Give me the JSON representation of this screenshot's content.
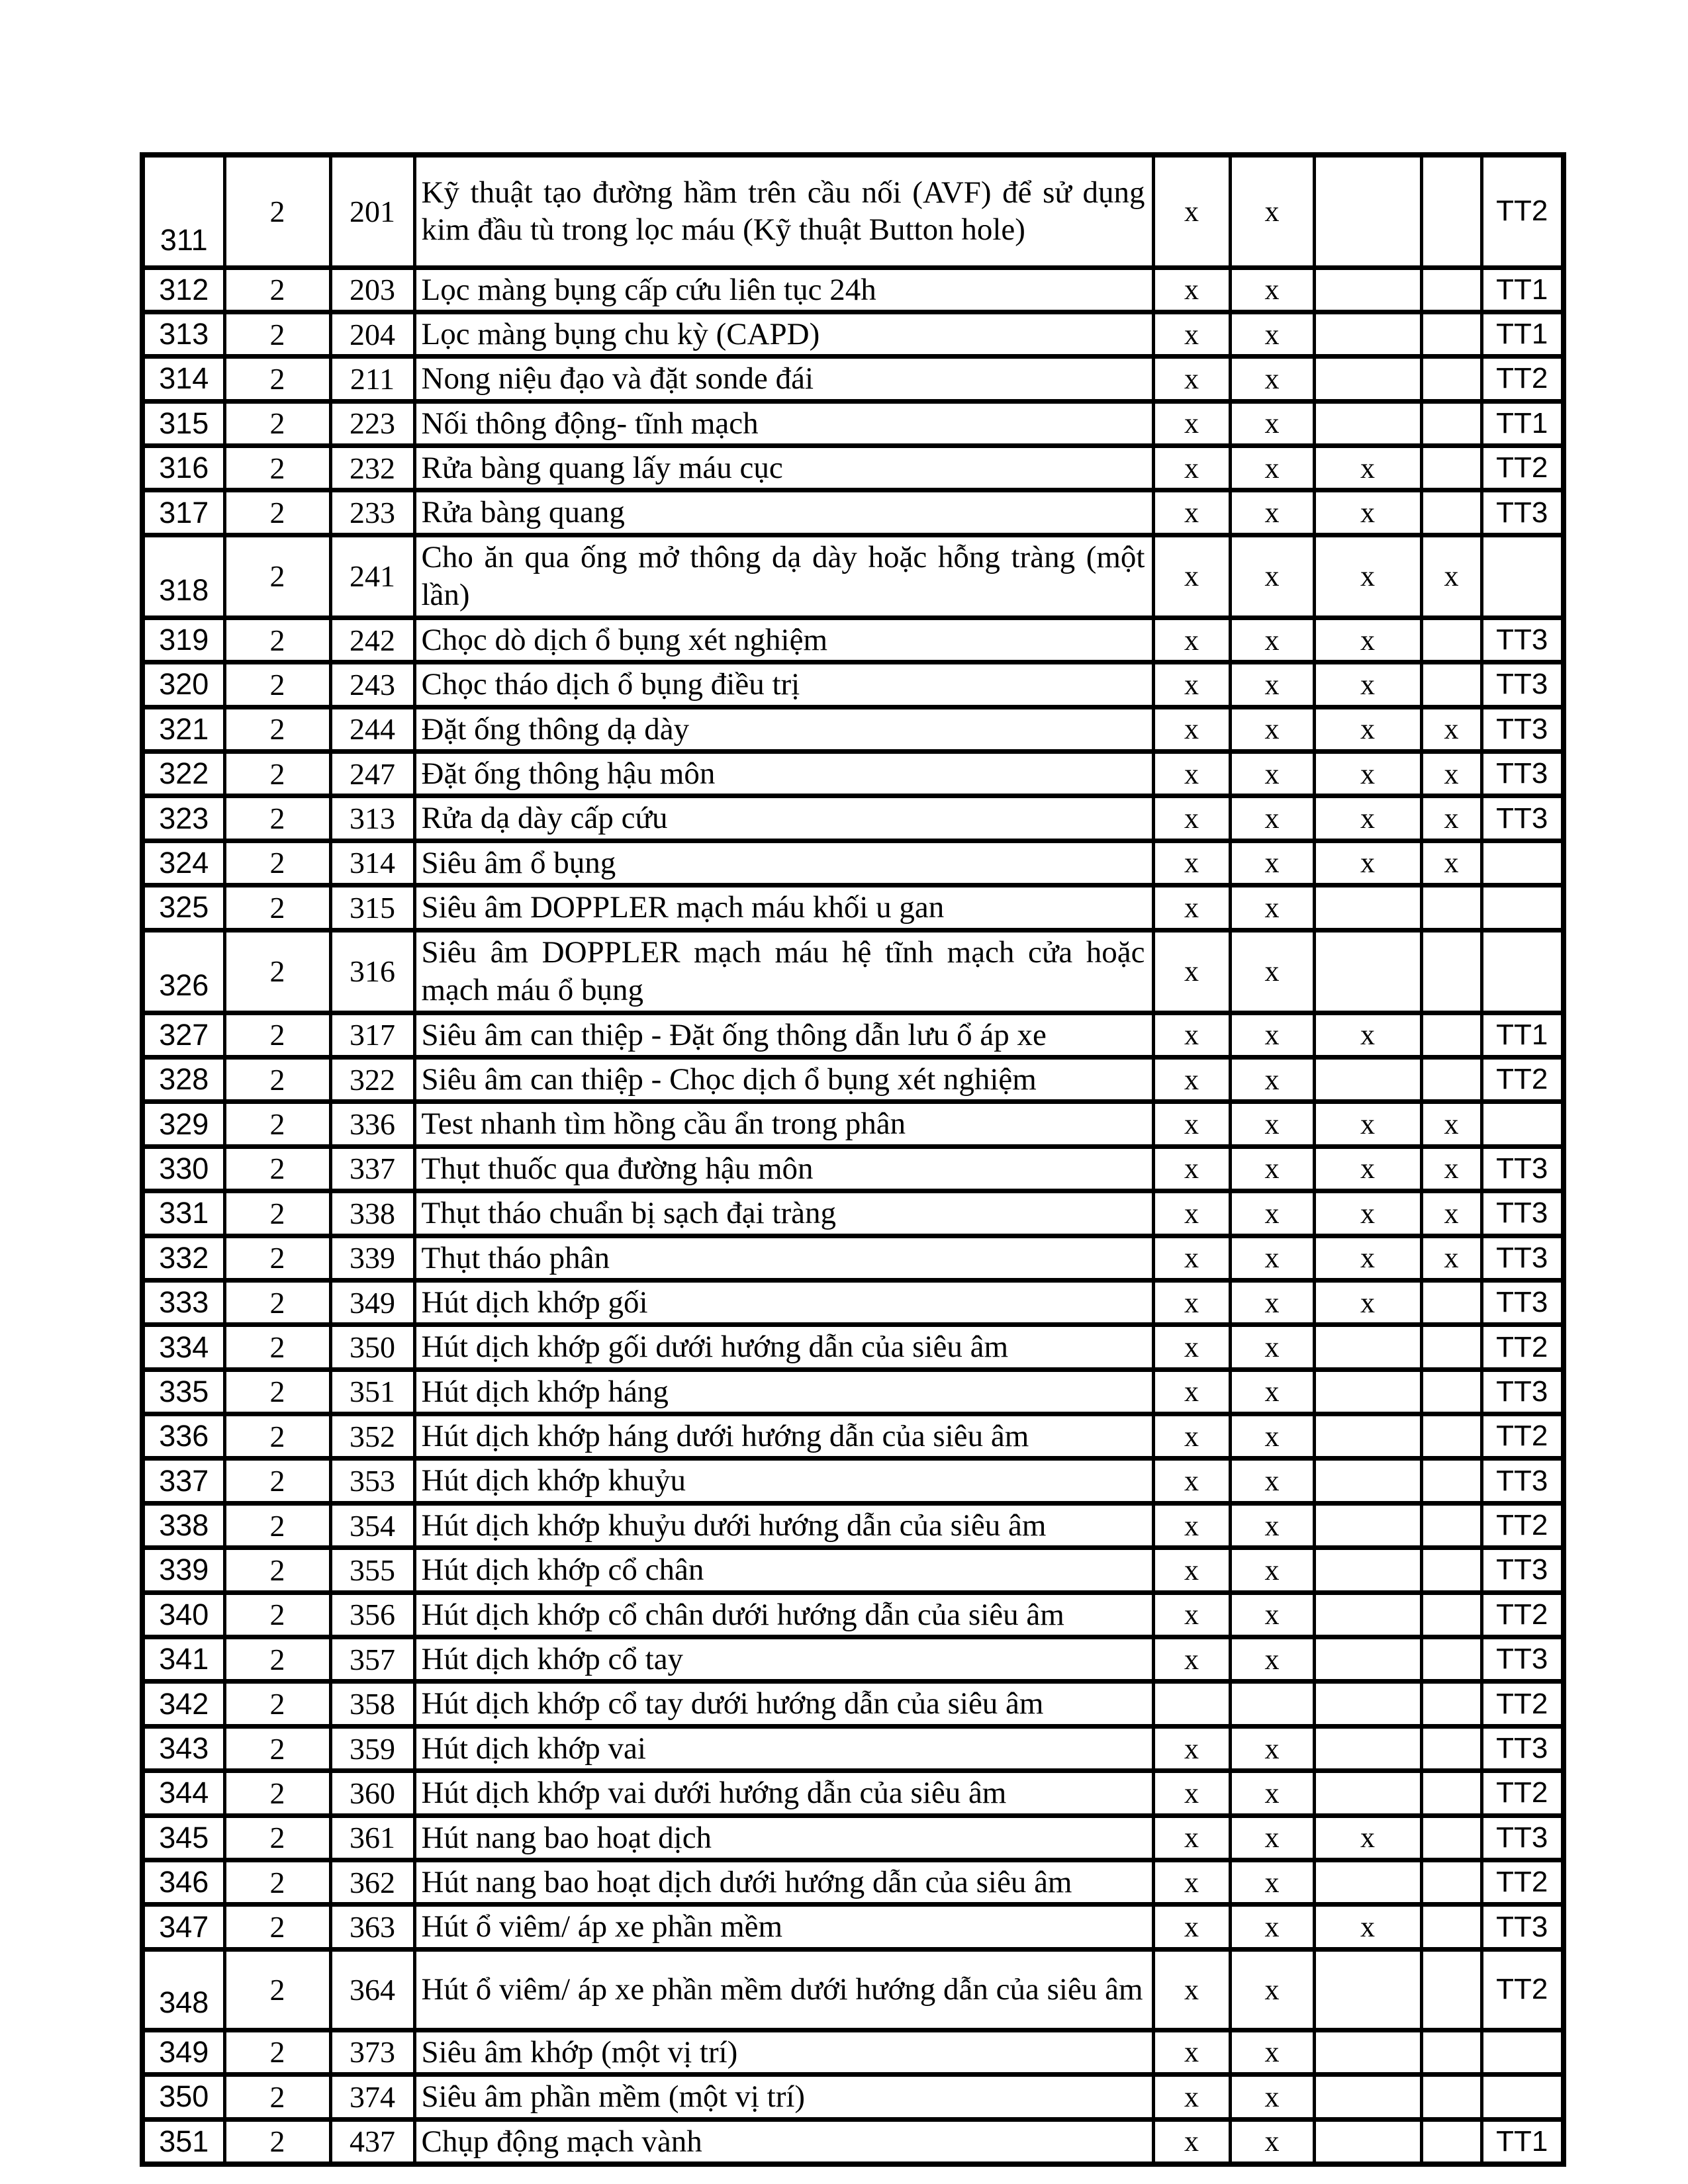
{
  "table": {
    "mark_symbol": "x",
    "rows": [
      {
        "stt": "311",
        "level": "2",
        "code": "201",
        "name": "Kỹ thuật tạo đường hầm trên cầu nối (AVF) để sử dụng kim đầu tù trong lọc máu (Kỹ thuật Button hole)",
        "marks": [
          "x",
          "x",
          "",
          ""
        ],
        "tt": "TT2"
      },
      {
        "stt": "312",
        "level": "2",
        "code": "203",
        "name": "Lọc màng bụng cấp cứu liên tục 24h",
        "marks": [
          "x",
          "x",
          "",
          ""
        ],
        "tt": "TT1"
      },
      {
        "stt": "313",
        "level": "2",
        "code": "204",
        "name": "Lọc màng bụng chu kỳ (CAPD)",
        "marks": [
          "x",
          "x",
          "",
          ""
        ],
        "tt": "TT1"
      },
      {
        "stt": "314",
        "level": "2",
        "code": "211",
        "name": "Nong niệu đạo và đặt sonde đái",
        "marks": [
          "x",
          "x",
          "",
          ""
        ],
        "tt": "TT2"
      },
      {
        "stt": "315",
        "level": "2",
        "code": "223",
        "name": "Nối thông động- tĩnh mạch",
        "marks": [
          "x",
          "x",
          "",
          ""
        ],
        "tt": "TT1"
      },
      {
        "stt": "316",
        "level": "2",
        "code": "232",
        "name": "Rửa bàng quang lấy máu cục",
        "marks": [
          "x",
          "x",
          "x",
          ""
        ],
        "tt": "TT2"
      },
      {
        "stt": "317",
        "level": "2",
        "code": "233",
        "name": "Rửa bàng quang",
        "marks": [
          "x",
          "x",
          "x",
          ""
        ],
        "tt": "TT3"
      },
      {
        "stt": "318",
        "level": "2",
        "code": "241",
        "name": "Cho ăn qua ống mở thông dạ dày hoặc hỗng tràng (một lần)",
        "marks": [
          "x",
          "x",
          "x",
          "x"
        ],
        "tt": ""
      },
      {
        "stt": "319",
        "level": "2",
        "code": "242",
        "name": "Chọc dò dịch ổ bụng xét nghiệm",
        "marks": [
          "x",
          "x",
          "x",
          ""
        ],
        "tt": "TT3"
      },
      {
        "stt": "320",
        "level": "2",
        "code": "243",
        "name": "Chọc tháo dịch ổ bụng điều trị",
        "marks": [
          "x",
          "x",
          "x",
          ""
        ],
        "tt": "TT3"
      },
      {
        "stt": "321",
        "level": "2",
        "code": "244",
        "name": "Đặt ống thông dạ dày",
        "marks": [
          "x",
          "x",
          "x",
          "x"
        ],
        "tt": "TT3"
      },
      {
        "stt": "322",
        "level": "2",
        "code": "247",
        "name": "Đặt ống thông hậu môn",
        "marks": [
          "x",
          "x",
          "x",
          "x"
        ],
        "tt": "TT3"
      },
      {
        "stt": "323",
        "level": "2",
        "code": "313",
        "name": "Rửa dạ dày cấp cứu",
        "marks": [
          "x",
          "x",
          "x",
          "x"
        ],
        "tt": "TT3"
      },
      {
        "stt": "324",
        "level": "2",
        "code": "314",
        "name": "Siêu âm ổ bụng",
        "marks": [
          "x",
          "x",
          "x",
          "x"
        ],
        "tt": ""
      },
      {
        "stt": "325",
        "level": "2",
        "code": "315",
        "name": "Siêu âm DOPPLER mạch máu khối u gan",
        "marks": [
          "x",
          "x",
          "",
          ""
        ],
        "tt": ""
      },
      {
        "stt": "326",
        "level": "2",
        "code": "316",
        "name": "Siêu âm DOPPLER mạch máu hệ tĩnh mạch cửa hoặc mạch máu ổ bụng",
        "marks": [
          "x",
          "x",
          "",
          ""
        ],
        "tt": ""
      },
      {
        "stt": "327",
        "level": "2",
        "code": "317",
        "name": "Siêu âm can thiệp - Đặt ống thông dẫn lưu ổ áp xe",
        "marks": [
          "x",
          "x",
          "x",
          ""
        ],
        "tt": "TT1"
      },
      {
        "stt": "328",
        "level": "2",
        "code": "322",
        "name": "Siêu âm can thiệp - Chọc dịch ổ bụng xét nghiệm",
        "marks": [
          "x",
          "x",
          "",
          ""
        ],
        "tt": "TT2"
      },
      {
        "stt": "329",
        "level": "2",
        "code": "336",
        "name": "Test nhanh tìm hồng cầu ẩn trong phân",
        "marks": [
          "x",
          "x",
          "x",
          "x"
        ],
        "tt": ""
      },
      {
        "stt": "330",
        "level": "2",
        "code": "337",
        "name": "Thụt thuốc qua đường hậu môn",
        "marks": [
          "x",
          "x",
          "x",
          "x"
        ],
        "tt": "TT3"
      },
      {
        "stt": "331",
        "level": "2",
        "code": "338",
        "name": "Thụt tháo chuẩn bị sạch đại tràng",
        "marks": [
          "x",
          "x",
          "x",
          "x"
        ],
        "tt": "TT3"
      },
      {
        "stt": "332",
        "level": "2",
        "code": "339",
        "name": "Thụt tháo phân",
        "marks": [
          "x",
          "x",
          "x",
          "x"
        ],
        "tt": "TT3"
      },
      {
        "stt": "333",
        "level": "2",
        "code": "349",
        "name": "Hút dịch khớp gối",
        "marks": [
          "x",
          "x",
          "x",
          ""
        ],
        "tt": "TT3"
      },
      {
        "stt": "334",
        "level": "2",
        "code": "350",
        "name": "Hút dịch khớp gối dưới hướng dẫn của siêu âm",
        "marks": [
          "x",
          "x",
          "",
          ""
        ],
        "tt": "TT2"
      },
      {
        "stt": "335",
        "level": "2",
        "code": "351",
        "name": "Hút dịch khớp háng",
        "marks": [
          "x",
          "x",
          "",
          ""
        ],
        "tt": "TT3"
      },
      {
        "stt": "336",
        "level": "2",
        "code": "352",
        "name": "Hút dịch khớp háng dưới hướng dẫn của siêu âm",
        "marks": [
          "x",
          "x",
          "",
          ""
        ],
        "tt": "TT2"
      },
      {
        "stt": "337",
        "level": "2",
        "code": "353",
        "name": "Hút dịch khớp khuỷu",
        "marks": [
          "x",
          "x",
          "",
          ""
        ],
        "tt": "TT3"
      },
      {
        "stt": "338",
        "level": "2",
        "code": "354",
        "name": "Hút dịch khớp khuỷu dưới hướng dẫn của siêu âm",
        "marks": [
          "x",
          "x",
          "",
          ""
        ],
        "tt": "TT2"
      },
      {
        "stt": "339",
        "level": "2",
        "code": "355",
        "name": "Hút dịch khớp cổ chân",
        "marks": [
          "x",
          "x",
          "",
          ""
        ],
        "tt": "TT3"
      },
      {
        "stt": "340",
        "level": "2",
        "code": "356",
        "name": "Hút dịch khớp cổ chân dưới hướng dẫn của siêu âm",
        "marks": [
          "x",
          "x",
          "",
          ""
        ],
        "tt": "TT2"
      },
      {
        "stt": "341",
        "level": "2",
        "code": "357",
        "name": "Hút dịch khớp cổ tay",
        "marks": [
          "x",
          "x",
          "",
          ""
        ],
        "tt": "TT3"
      },
      {
        "stt": "342",
        "level": "2",
        "code": "358",
        "name": "Hút dịch khớp cổ tay dưới hướng dẫn của siêu âm",
        "marks": [
          "",
          "",
          "",
          ""
        ],
        "tt": "TT2"
      },
      {
        "stt": "343",
        "level": "2",
        "code": "359",
        "name": "Hút dịch khớp vai",
        "marks": [
          "x",
          "x",
          "",
          ""
        ],
        "tt": "TT3"
      },
      {
        "stt": "344",
        "level": "2",
        "code": "360",
        "name": "Hút dịch khớp vai dưới hướng dẫn của siêu âm",
        "marks": [
          "x",
          "x",
          "",
          ""
        ],
        "tt": "TT2"
      },
      {
        "stt": "345",
        "level": "2",
        "code": "361",
        "name": "Hút nang bao hoạt dịch",
        "marks": [
          "x",
          "x",
          "x",
          ""
        ],
        "tt": "TT3"
      },
      {
        "stt": "346",
        "level": "2",
        "code": "362",
        "name": "Hút nang bao hoạt dịch dưới hướng dẫn của siêu âm",
        "marks": [
          "x",
          "x",
          "",
          ""
        ],
        "tt": "TT2"
      },
      {
        "stt": "347",
        "level": "2",
        "code": "363",
        "name": "Hút ổ viêm/ áp xe phần mềm",
        "marks": [
          "x",
          "x",
          "x",
          ""
        ],
        "tt": "TT3"
      },
      {
        "stt": "348",
        "level": "2",
        "code": "364",
        "name": "Hút ổ viêm/ áp xe phần mềm dưới hướng dẫn của siêu âm",
        "marks": [
          "x",
          "x",
          "",
          ""
        ],
        "tt": "TT2"
      },
      {
        "stt": "349",
        "level": "2",
        "code": "373",
        "name": "Siêu âm khớp (một vị trí)",
        "marks": [
          "x",
          "x",
          "",
          ""
        ],
        "tt": ""
      },
      {
        "stt": "350",
        "level": "2",
        "code": "374",
        "name": "Siêu âm phần mềm (một vị trí)",
        "marks": [
          "x",
          "x",
          "",
          ""
        ],
        "tt": ""
      },
      {
        "stt": "351",
        "level": "2",
        "code": "437",
        "name": "Chụp động mạch vành",
        "marks": [
          "x",
          "x",
          "",
          ""
        ],
        "tt": "TT1"
      }
    ]
  }
}
